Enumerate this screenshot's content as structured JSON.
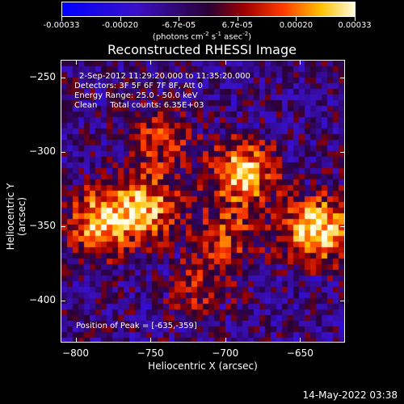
{
  "colorbar": {
    "labels": [
      "-0.00033",
      "-0.00020",
      "-6.7e-05",
      "6.7e-05",
      "0.00020",
      "0.00033"
    ],
    "units_text": "(photons cm",
    "units_sup1": "-2",
    "units_mid1": " s",
    "units_sup2": "-1",
    "units_mid2": " asec",
    "units_sup3": "-2",
    "units_end": ")"
  },
  "title": "Reconstructed RHESSI Image",
  "annotations": {
    "line1": "2-Sep-2012 11:29:20.000 to 11:35:20.000",
    "line2": "Detectors: 3F 5F 6F 7F 8F, Att 0",
    "line3": "Energy Range: 25.0 - 50.0 keV",
    "line4": "Clean     Total counts: 6.35E+03",
    "peak": "Position of Peak = [-635,-359]"
  },
  "footer": {
    "timestamp": "14-May-2022 03:38"
  },
  "chart_data": {
    "type": "heatmap",
    "title": "Reconstructed RHESSI Image",
    "xlabel": "Heliocentric X (arcsec)",
    "ylabel": "Heliocentric Y (arcsec)",
    "xlim": [
      -810,
      -620
    ],
    "ylim": [
      -428,
      -238
    ],
    "xticks": [
      -800,
      -750,
      -700,
      -650
    ],
    "yticks": [
      -250,
      -300,
      -350,
      -400
    ],
    "colorbar_range": [
      -0.00033,
      0.00033
    ],
    "peak": [
      -635,
      -359
    ],
    "sources": [
      {
        "x": -785,
        "y": -345,
        "strength": 0.85
      },
      {
        "x": -755,
        "y": -335,
        "strength": 0.75
      },
      {
        "x": -690,
        "y": -312,
        "strength": 0.9
      },
      {
        "x": -640,
        "y": -350,
        "strength": 1.0
      },
      {
        "x": -745,
        "y": -290,
        "strength": 0.45
      },
      {
        "x": -700,
        "y": -355,
        "strength": 0.45
      },
      {
        "x": -720,
        "y": -390,
        "strength": 0.35
      }
    ]
  }
}
